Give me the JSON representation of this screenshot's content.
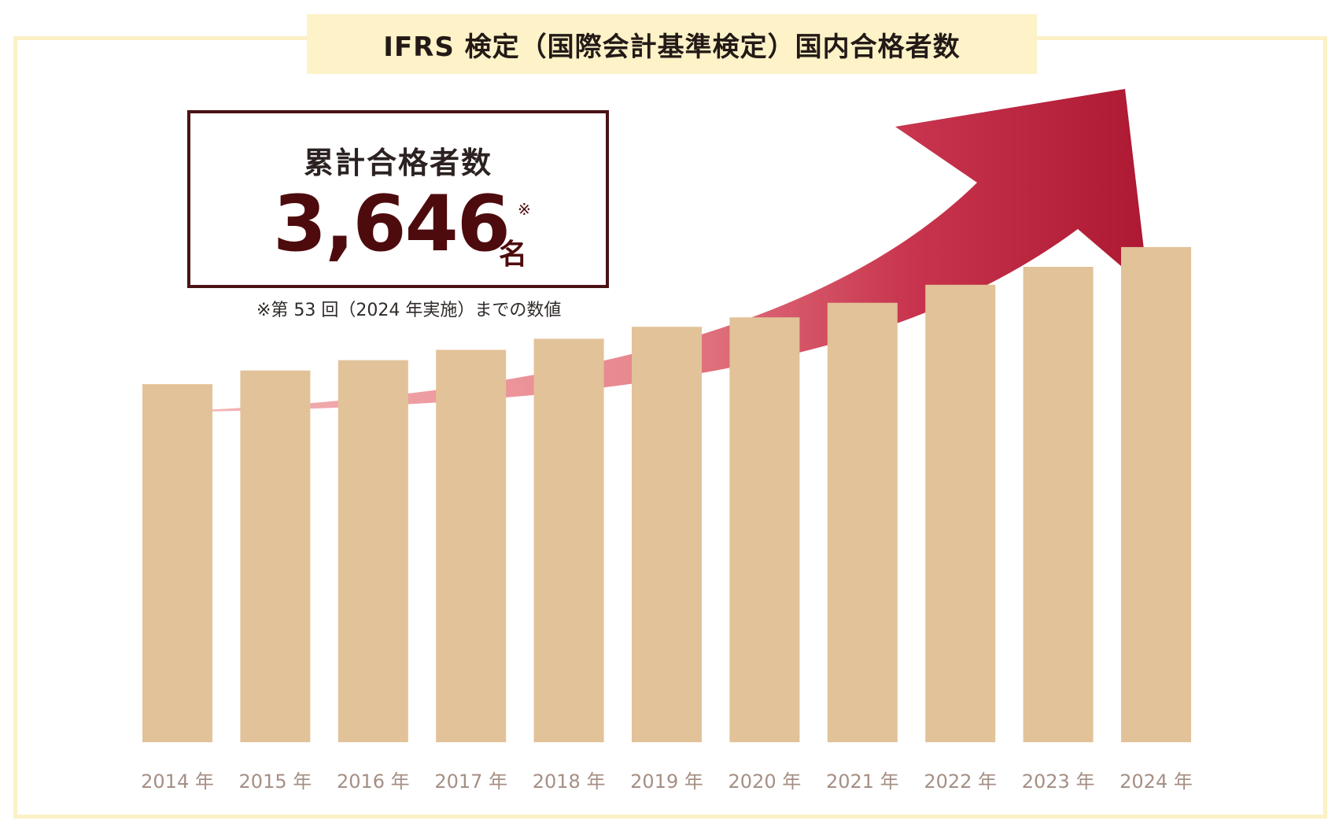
{
  "title": "IFRS 検定（国際会計基準検定）国内合格者数",
  "total": {
    "label": "累計合格者数",
    "value": "3,646",
    "unit": "名",
    "mark": "※"
  },
  "footnote": "※第 53 回（2024 年実施）までの数値",
  "colors": {
    "bar": "#e2c298",
    "frame": "#fbf1c5",
    "title_bg": "#fdf2c8",
    "arrow_start": "#f4b4b6",
    "arrow_end": "#ad1832",
    "accent_dark": "#4e0b0d",
    "tick_text": "#a58f84"
  },
  "chart_data": {
    "type": "bar",
    "categories": [
      "2014 年",
      "2015 年",
      "2016 年",
      "2017 年",
      "2018 年",
      "2019 年",
      "2020 年",
      "2021 年",
      "2022 年",
      "2023 年",
      "2024 年"
    ],
    "values": [
      418,
      434,
      446,
      458,
      471,
      485,
      496,
      513,
      534,
      555,
      578
    ],
    "ylim": [
      0,
      600
    ]
  }
}
